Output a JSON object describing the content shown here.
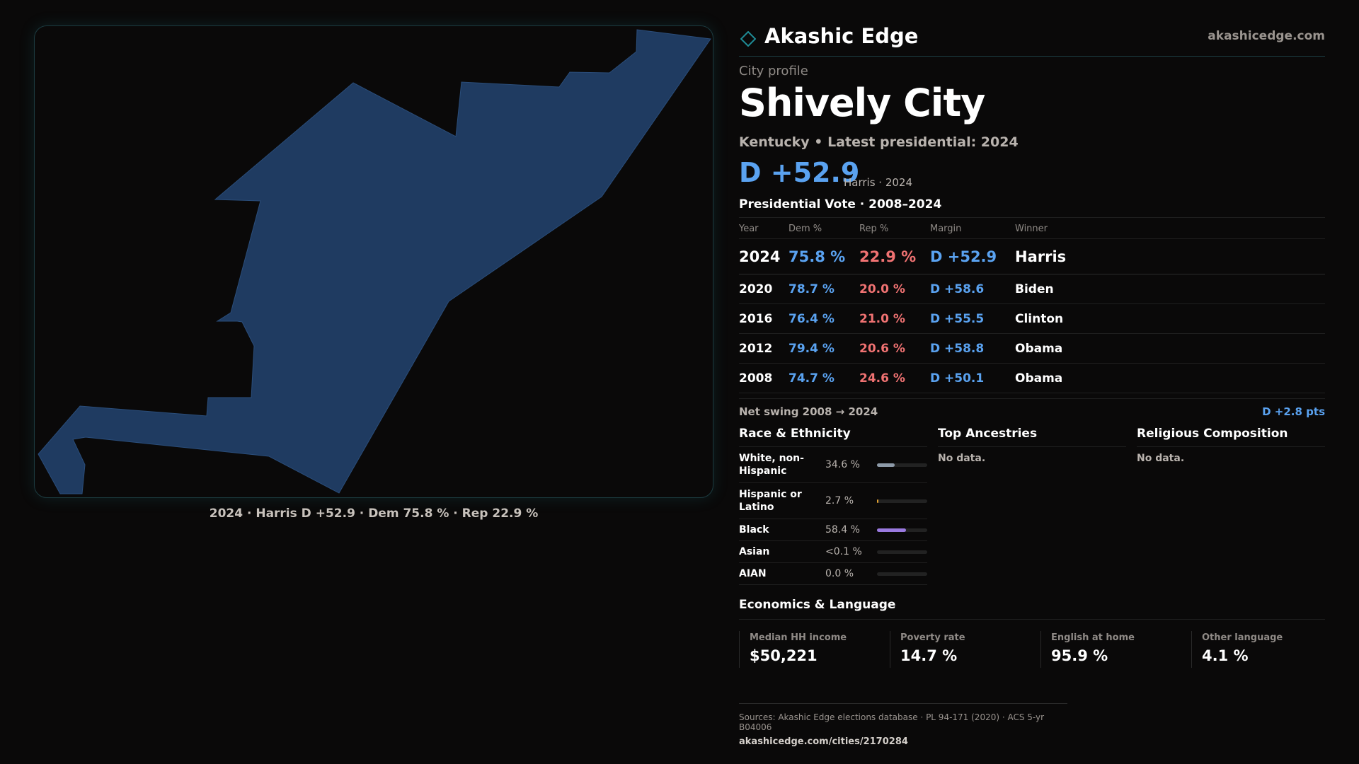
{
  "brand": {
    "name": "Akashic Edge",
    "url": "akashicedge.com"
  },
  "colors": {
    "background": "#0a0909",
    "accent_teal": "#1f8c96",
    "dem_blue": "#5aa2f0",
    "rep_red": "#f07272",
    "map_fill": "#1f3b61"
  },
  "profile": {
    "eyebrow": "City profile",
    "city": "Shively City",
    "subtitle": "Kentucky • Latest presidential: 2024",
    "headline_margin": "D +52.9",
    "headline_note": "Harris · 2024"
  },
  "map": {
    "caption": "2024 · Harris D +52.9 · Dem 75.8 % · Rep 22.9 %"
  },
  "presidential": {
    "title": "Presidential Vote · 2008–2024",
    "headers": {
      "year": "Year",
      "dem": "Dem %",
      "rep": "Rep %",
      "margin": "Margin",
      "winner": "Winner"
    },
    "rows": [
      {
        "year": "2024",
        "dem": "75.8 %",
        "rep": "22.9 %",
        "margin": "D +52.9",
        "winner": "Harris"
      },
      {
        "year": "2020",
        "dem": "78.7 %",
        "rep": "20.0 %",
        "margin": "D +58.6",
        "winner": "Biden"
      },
      {
        "year": "2016",
        "dem": "76.4 %",
        "rep": "21.0 %",
        "margin": "D +55.5",
        "winner": "Clinton"
      },
      {
        "year": "2012",
        "dem": "79.4 %",
        "rep": "20.6 %",
        "margin": "D +58.8",
        "winner": "Obama"
      },
      {
        "year": "2008",
        "dem": "74.7 %",
        "rep": "24.6 %",
        "margin": "D +50.1",
        "winner": "Obama"
      }
    ],
    "swing_label": "Net swing 2008 → 2024",
    "swing_value": "D +2.8 pts"
  },
  "race": {
    "title": "Race & Ethnicity",
    "rows": [
      {
        "label": "White, non-Hispanic",
        "pct": "34.6 %",
        "share": 0.346,
        "color": "#8d9aa8"
      },
      {
        "label": "Hispanic or Latino",
        "pct": "2.7 %",
        "share": 0.027,
        "color": "#e0a030"
      },
      {
        "label": "Black",
        "pct": "58.4 %",
        "share": 0.584,
        "color": "#9a7ae0"
      },
      {
        "label": "Asian",
        "pct": "<0.1 %",
        "share": 0.0,
        "color": "#5aa2f0"
      },
      {
        "label": "AIAN",
        "pct": "0.0 %",
        "share": 0.0,
        "color": "#5aa2f0"
      }
    ]
  },
  "ancestries": {
    "title": "Top Ancestries",
    "empty": "No data."
  },
  "religion": {
    "title": "Religious Composition",
    "empty": "No data."
  },
  "economics": {
    "title": "Economics & Language",
    "cells": [
      {
        "label": "Median HH income",
        "value": "$50,221"
      },
      {
        "label": "Poverty rate",
        "value": "14.7 %"
      },
      {
        "label": "English at home",
        "value": "95.9 %"
      },
      {
        "label": "Other language",
        "value": "4.1 %"
      }
    ]
  },
  "footer": {
    "sources": "Sources: Akashic Edge elections database · PL 94-171 (2020) · ACS 5-yr B04006",
    "url": "akashicedge.com/cities/2170284"
  }
}
